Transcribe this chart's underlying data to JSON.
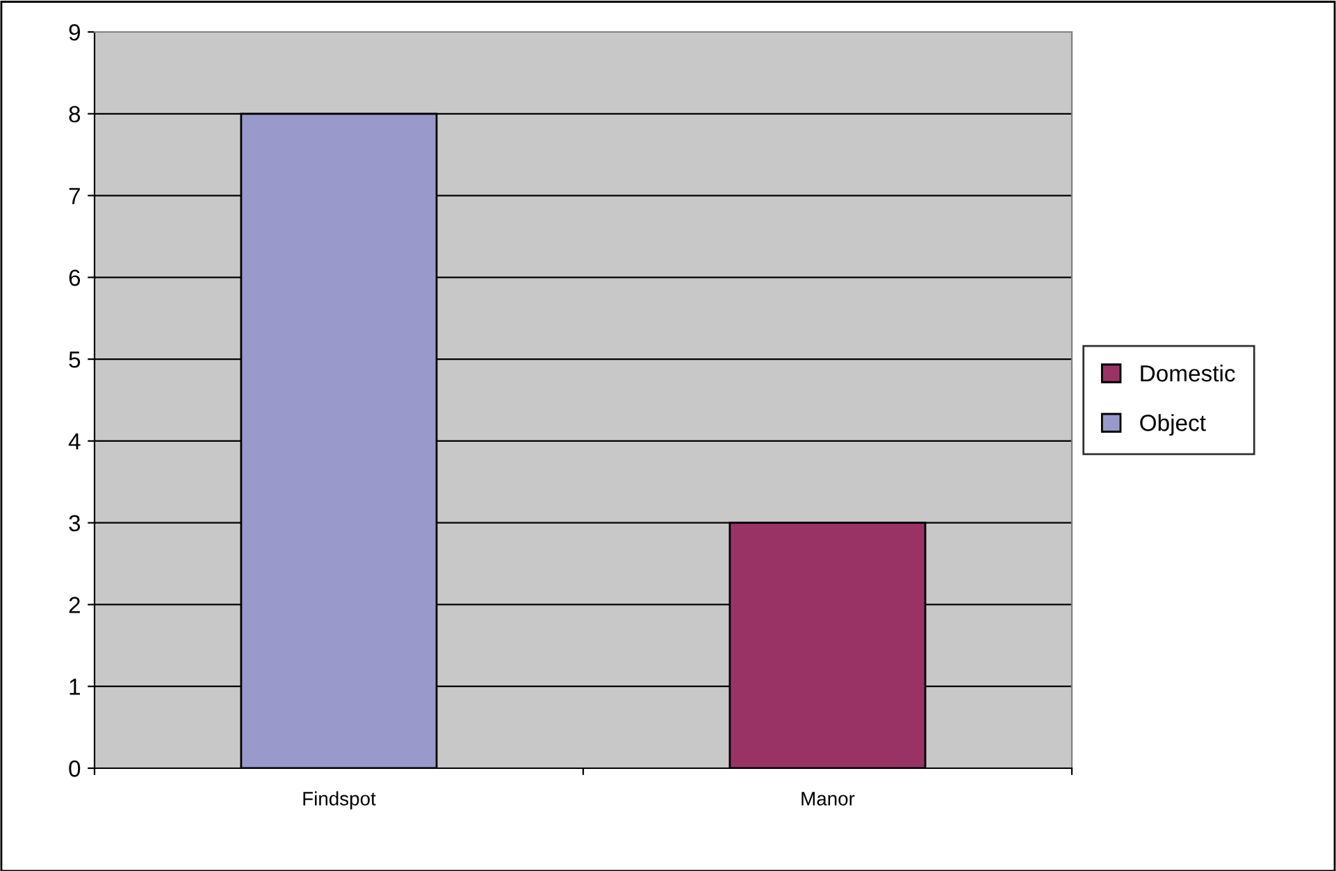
{
  "chart_data": {
    "type": "bar",
    "stacked": true,
    "categories": [
      "Findspot",
      "Manor"
    ],
    "series": [
      {
        "name": "Domestic",
        "color": "#993366",
        "values": [
          null,
          3
        ]
      },
      {
        "name": "Object",
        "color": "#9999cc",
        "values": [
          8,
          null
        ]
      }
    ],
    "ylim": [
      0,
      9
    ],
    "yticks": [
      0,
      1,
      2,
      3,
      4,
      5,
      6,
      7,
      8,
      9
    ],
    "grid": "y",
    "legend": "right"
  }
}
